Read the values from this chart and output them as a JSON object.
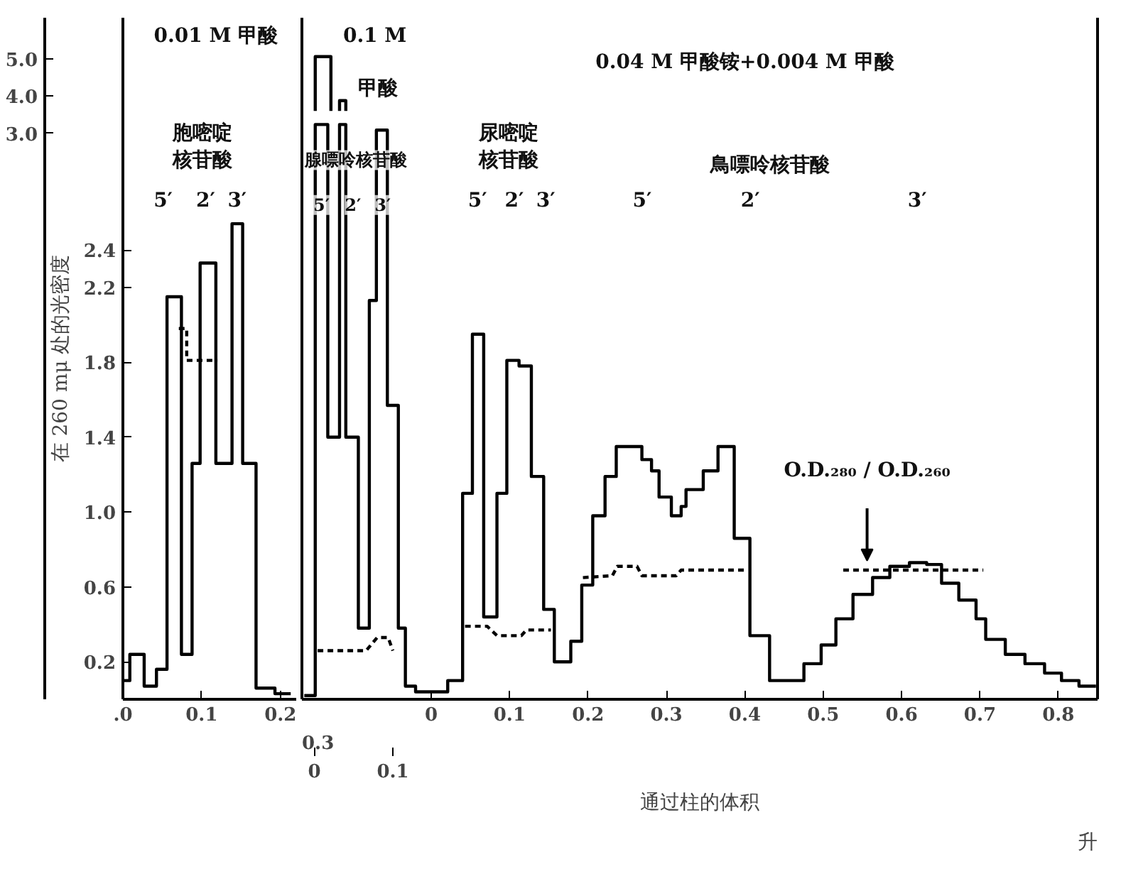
{
  "chart_data": [
    {
      "type": "step",
      "ylabel": "在 260 mμ 处的光密度",
      "xlim": [
        0,
        0.22
      ],
      "xticks": [
        {
          "value": 0,
          "label": ".0"
        },
        0.1,
        0.2
      ],
      "ylim": [
        0,
        3.64
      ],
      "yticks": [
        0.2,
        0.6,
        {
          "value": 1,
          "label": "1.0"
        },
        1.4,
        1.8,
        2.2,
        2.4
      ],
      "y2lim": [
        -12.31,
        6.12
      ],
      "y2ticks": [
        {
          "value": 3,
          "label": "3.0"
        },
        {
          "value": 4,
          "label": "4.0"
        },
        {
          "value": 5,
          "label": "5.0"
        }
      ],
      "grid": false,
      "series": [
        {
          "color": "#000000",
          "line_style": "solid",
          "x": [
            0,
            0.0088,
            0.027,
            0.0426,
            0.056,
            0.0743,
            0.0878,
            0.098,
            0.118,
            0.1385,
            0.152,
            0.169,
            0.193,
            0.213
          ],
          "values": [
            0.1,
            0.24,
            0.07,
            0.16,
            2.15,
            0.24,
            1.26,
            2.33,
            1.26,
            2.54,
            1.26,
            0.06,
            0.03,
            0.03
          ]
        },
        {
          "color": "#000000",
          "line_style": "dashed",
          "x": [
            0.071,
            0.081,
            0.12
          ],
          "values": [
            1.98,
            1.81,
            1.81
          ]
        }
      ],
      "annotations": [
        "0.01 M 甲酸",
        "胞嘧啶核苷酸",
        "5′",
        "2′",
        "3′"
      ]
    },
    {
      "type": "step",
      "xlabel": "通过柱的体积",
      "xlim": [
        -0.165,
        0.85
      ],
      "xticks": [
        0,
        0.1,
        0.2,
        0.3,
        0.4,
        0.5,
        0.6,
        0.7,
        0.8
      ],
      "x2lim": [
        -0.016,
        0.999
      ],
      "x2ticks": [
        0,
        0.1
      ],
      "ylim": [
        0,
        3.64
      ],
      "y2lim": [
        -12.31,
        6.12
      ],
      "tick_labels": "x",
      "grid": false,
      "series": [
        {
          "color": "#000000",
          "line_style": "solid",
          "x": [
            -0.162,
            -0.148,
            -0.132,
            -0.117,
            -0.109,
            -0.093,
            -0.079,
            -0.07,
            -0.056,
            -0.042,
            -0.033,
            -0.02,
            0.021,
            0.04,
            0.0525,
            0.0669,
            0.0838,
            0.0964,
            0.112,
            0.1277,
            0.1434,
            0.157,
            0.178,
            0.192,
            0.206,
            0.2217,
            0.236,
            0.2687,
            0.281,
            0.2906,
            0.3063,
            0.3188,
            0.325,
            0.347,
            0.3658,
            0.3865,
            0.4065,
            0.4316,
            0.4754,
            0.4974,
            0.5162,
            0.538,
            0.563,
            0.585,
            0.61,
            0.632,
            0.651,
            0.673,
            0.695,
            0.7073,
            0.7323,
            0.7574,
            0.7824,
            0.804,
            0.8263,
            0.848
          ],
          "values": [
            0.02,
            3.07,
            1.4,
            3.07,
            1.4,
            0.38,
            2.13,
            3.04,
            1.57,
            0.38,
            0.07,
            0.04,
            0.1,
            1.1,
            1.95,
            0.44,
            1.1,
            1.81,
            1.78,
            1.19,
            0.48,
            0.2,
            0.31,
            0.61,
            0.98,
            1.19,
            1.35,
            1.28,
            1.22,
            1.08,
            0.98,
            1.03,
            1.12,
            1.22,
            1.35,
            0.86,
            0.34,
            0.1,
            0.19,
            0.29,
            0.43,
            0.56,
            0.65,
            0.71,
            0.73,
            0.72,
            0.62,
            0.53,
            0.43,
            0.32,
            0.24,
            0.19,
            0.14,
            0.1,
            0.07,
            0.07
          ]
        },
        {
          "type": "line",
          "color": "#000000",
          "line_style": "dashed",
          "x": [
            -0.145,
            -0.083,
            -0.069,
            -0.055,
            -0.049,
            null,
            0.0431,
            0.0713,
            0.0838,
            0.115,
            0.1214,
            0.1527,
            null,
            0.1935,
            0.231,
            0.2374,
            0.2625,
            0.2687,
            0.3125,
            0.3188,
            0.4034,
            null,
            0.5256,
            0.7042
          ],
          "values": [
            0.26,
            0.26,
            0.33,
            0.33,
            0.26,
            null,
            0.39,
            0.39,
            0.34,
            0.34,
            0.37,
            0.37,
            null,
            0.65,
            0.66,
            0.71,
            0.71,
            0.66,
            0.66,
            0.69,
            0.69,
            null,
            0.69,
            0.69
          ]
        },
        {
          "type": "line",
          "color": "#000000",
          "line_style": "solid",
          "axis": "y2",
          "x": [
            -0.148,
            -0.148,
            -0.128,
            -0.128,
            null,
            -0.117,
            -0.117,
            -0.109,
            -0.109
          ],
          "values": [
            3.6,
            5.07,
            5.07,
            3.6,
            null,
            3.6,
            3.88,
            3.88,
            3.6
          ]
        }
      ],
      "annotations": [
        "0.1 M",
        "甲酸",
        "0.04 M 甲酸铵+0.004 M 甲酸",
        "腺嘌呤核苷酸",
        "5′",
        "2′",
        "3′",
        "尿嘧啶核苷酸",
        "5′",
        "2′",
        "3′",
        "鳥嘌呤核苷酸",
        "5′",
        "2′",
        "3′",
        "O.D.₂₈₀ / O.D.₂₆₀",
        "0.3",
        "升"
      ]
    }
  ]
}
